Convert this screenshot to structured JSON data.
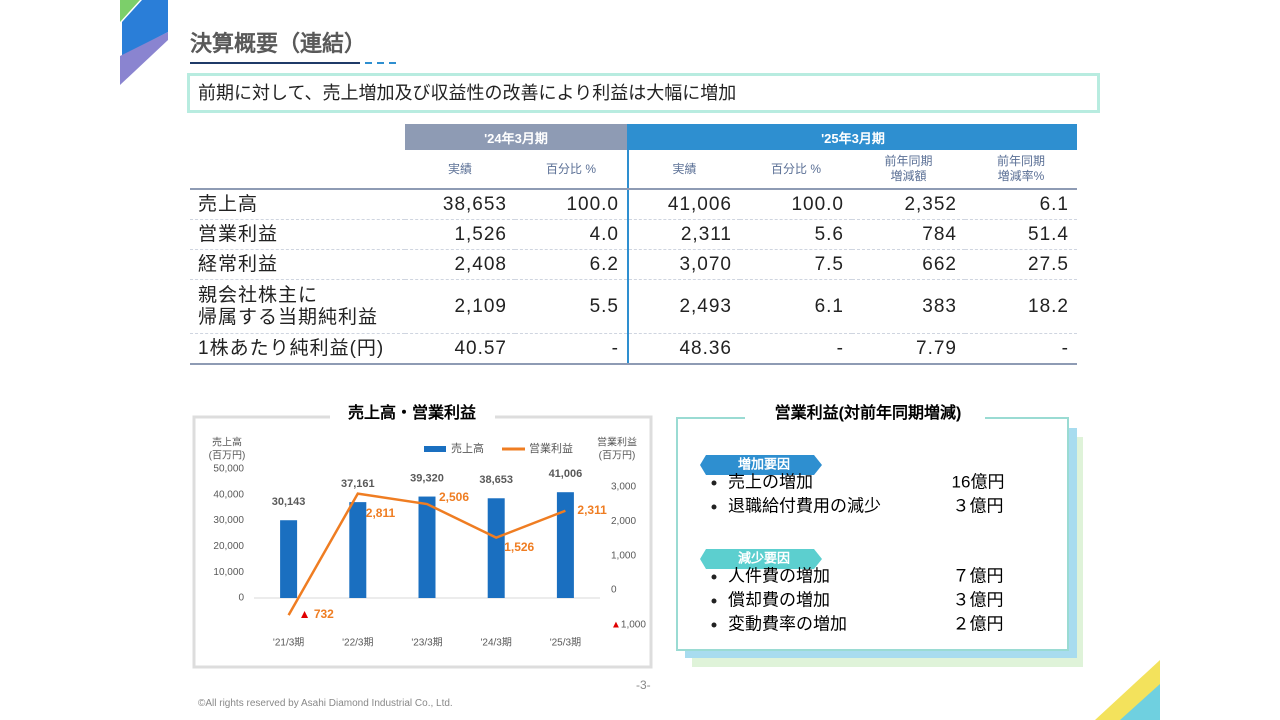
{
  "header": {
    "title": "決算概要（連結）",
    "subtitle": "前期に対して、売上増加及び収益性の改善により利益は大幅に増加"
  },
  "table": {
    "groups": [
      "'24年3月期",
      "'25年3月期"
    ],
    "columns": [
      "実績",
      "百分比 %",
      "実績",
      "百分比 %",
      "前年同期\n増減額",
      "前年同期\n増減率%"
    ],
    "rows": [
      [
        "売上高",
        "38,653",
        "100.0",
        "41,006",
        "100.0",
        "2,352",
        "6.1"
      ],
      [
        "営業利益",
        "1,526",
        "4.0",
        "2,311",
        "5.6",
        "784",
        "51.4"
      ],
      [
        "経常利益",
        "2,408",
        "6.2",
        "3,070",
        "7.5",
        "662",
        "27.5"
      ],
      [
        "親会社株主に\n帰属する当期純利益",
        "2,109",
        "5.5",
        "2,493",
        "6.1",
        "383",
        "18.2"
      ],
      [
        "1株あたり純利益(円)",
        "40.57",
        "-",
        "48.36",
        "-",
        "7.79",
        "-"
      ]
    ]
  },
  "chart_data": {
    "type": "bar-line",
    "title": "売上高・営業利益",
    "ylabel": [
      "売上高",
      "(百万円)"
    ],
    "y2label": [
      "営業利益",
      "(百万円)"
    ],
    "categories": [
      "'21/3期",
      "'22/3期",
      "'23/3期",
      "'24/3期",
      "'25/3期"
    ],
    "series": [
      {
        "name": "売上高",
        "type": "bar",
        "color": "#1a6fc0",
        "values": [
          30143,
          37161,
          39320,
          38653,
          41006
        ],
        "value_labels": [
          "30,143",
          "37,161",
          "39,320",
          "38,653",
          "41,006"
        ]
      },
      {
        "name": "営業利益",
        "type": "line",
        "axis": "y2",
        "color": "#ef7d22",
        "values": [
          -732,
          2811,
          2506,
          1526,
          2311
        ],
        "value_labels": [
          "▲ 732",
          "2,811",
          "2,506",
          "1,526",
          "2,311"
        ]
      }
    ],
    "ylim": [
      0,
      50000
    ],
    "yticks": [
      0,
      {
        "value": 10000,
        "label": "10,000"
      },
      {
        "value": 20000,
        "label": "20,000"
      },
      {
        "value": 30000,
        "label": "30,000"
      },
      {
        "value": 40000,
        "label": "40,000"
      },
      {
        "value": 50000,
        "label": "50,000"
      }
    ],
    "y2lim": [
      -1000,
      3000
    ],
    "y2ticks": [
      {
        "value": -1000,
        "label": "▲1,000"
      },
      0,
      {
        "value": 1000,
        "label": "1,000"
      },
      {
        "value": 2000,
        "label": "2,000"
      },
      {
        "value": 3000,
        "label": "3,000"
      }
    ]
  },
  "factors": {
    "title": "営業利益(対前年同期増減)",
    "groups": [
      {
        "label": "増加要因",
        "items": [
          {
            "name": "売上の増加",
            "amount": "16億円"
          },
          {
            "name": "退職給付費用の減少",
            "amount": "３億円"
          }
        ]
      },
      {
        "label": "減少要因",
        "items": [
          {
            "name": "人件費の増加",
            "amount": "７億円"
          },
          {
            "name": "償却費の増加",
            "amount": "３億円"
          },
          {
            "name": "変動費率の増加",
            "amount": "２億円"
          }
        ]
      }
    ]
  },
  "footer": {
    "copyright": "©All rights reserved by Asahi Diamond Industrial Co., Ltd.",
    "page": "-3-"
  }
}
